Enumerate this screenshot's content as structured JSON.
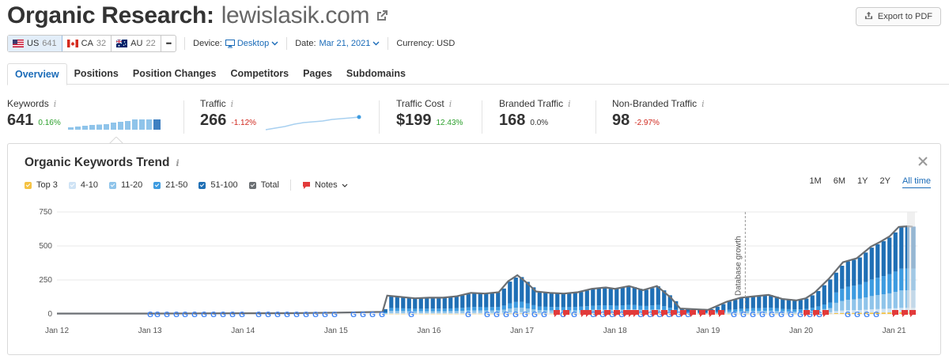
{
  "header": {
    "title": "Organic Research:",
    "domain": "lewislasik.com",
    "export_label": "Export to PDF"
  },
  "databases": [
    {
      "code": "US",
      "count": "641",
      "active": true
    },
    {
      "code": "CA",
      "count": "32",
      "active": false
    },
    {
      "code": "AU",
      "count": "22",
      "active": false
    }
  ],
  "more_label": "•••",
  "filters": {
    "device_label": "Device:",
    "device_value": "Desktop",
    "date_label": "Date:",
    "date_value": "Mar 21, 2021",
    "currency": "Currency: USD"
  },
  "tabs": [
    "Overview",
    "Positions",
    "Position Changes",
    "Competitors",
    "Pages",
    "Subdomains"
  ],
  "metrics": {
    "keywords": {
      "label": "Keywords",
      "value": "641",
      "change": "0.16%"
    },
    "traffic": {
      "label": "Traffic",
      "value": "266",
      "change": "-1.12%"
    },
    "traffic_cost": {
      "label": "Traffic Cost",
      "value": "$199",
      "change": "12.43%"
    },
    "branded": {
      "label": "Branded Traffic",
      "value": "168",
      "change": "0.0%"
    },
    "nonbranded": {
      "label": "Non-Branded Traffic",
      "value": "98",
      "change": "-2.97%"
    }
  },
  "trend": {
    "title": "Organic Keywords Trend",
    "legend": [
      {
        "label": "Top 3",
        "color": "#f5c242"
      },
      {
        "label": "4-10",
        "color": "#cfe3f5"
      },
      {
        "label": "11-20",
        "color": "#8fc4ea"
      },
      {
        "label": "21-50",
        "color": "#3d9be0"
      },
      {
        "label": "51-100",
        "color": "#1f6fb5"
      },
      {
        "label": "Total",
        "color": "#6b6f73"
      }
    ],
    "notes_label": "Notes",
    "ranges": [
      "1M",
      "6M",
      "1Y",
      "2Y",
      "All time"
    ],
    "active_range": "All time",
    "annotation": "Database growth"
  },
  "chart_data": {
    "type": "bar",
    "ylim": [
      0,
      750
    ],
    "yticks": [
      0,
      250,
      500,
      750
    ],
    "x_tick_labels": [
      "Jan 12",
      "Jan 13",
      "Jan 14",
      "Jan 15",
      "Jan 16",
      "Jan 17",
      "Jan 18",
      "Jan 19",
      "Jan 20",
      "Jan 21"
    ],
    "x_domain": [
      2012.0,
      2021.25
    ],
    "series": [
      {
        "name": "Total",
        "points": [
          [
            2012.0,
            3
          ],
          [
            2012.5,
            3
          ],
          [
            2013.0,
            3
          ],
          [
            2013.5,
            4
          ],
          [
            2014.0,
            5
          ],
          [
            2014.5,
            6
          ],
          [
            2015.0,
            10
          ],
          [
            2015.5,
            15
          ],
          [
            2015.55,
            135
          ],
          [
            2015.7,
            125
          ],
          [
            2015.85,
            115
          ],
          [
            2016.0,
            120
          ],
          [
            2016.15,
            120
          ],
          [
            2016.3,
            130
          ],
          [
            2016.45,
            155
          ],
          [
            2016.6,
            150
          ],
          [
            2016.75,
            160
          ],
          [
            2016.85,
            240
          ],
          [
            2016.95,
            285
          ],
          [
            2017.05,
            230
          ],
          [
            2017.15,
            165
          ],
          [
            2017.3,
            155
          ],
          [
            2017.45,
            150
          ],
          [
            2017.6,
            160
          ],
          [
            2017.75,
            185
          ],
          [
            2017.9,
            195
          ],
          [
            2018.0,
            185
          ],
          [
            2018.15,
            205
          ],
          [
            2018.3,
            175
          ],
          [
            2018.45,
            205
          ],
          [
            2018.6,
            120
          ],
          [
            2018.7,
            40
          ],
          [
            2018.85,
            35
          ],
          [
            2019.0,
            30
          ],
          [
            2019.2,
            90
          ],
          [
            2019.35,
            120
          ],
          [
            2019.5,
            130
          ],
          [
            2019.65,
            140
          ],
          [
            2019.8,
            110
          ],
          [
            2019.95,
            100
          ],
          [
            2020.05,
            115
          ],
          [
            2020.15,
            160
          ],
          [
            2020.3,
            260
          ],
          [
            2020.45,
            380
          ],
          [
            2020.6,
            410
          ],
          [
            2020.75,
            495
          ],
          [
            2020.85,
            530
          ],
          [
            2020.95,
            570
          ],
          [
            2021.05,
            640
          ],
          [
            2021.15,
            645
          ],
          [
            2021.2,
            641
          ]
        ]
      }
    ]
  }
}
